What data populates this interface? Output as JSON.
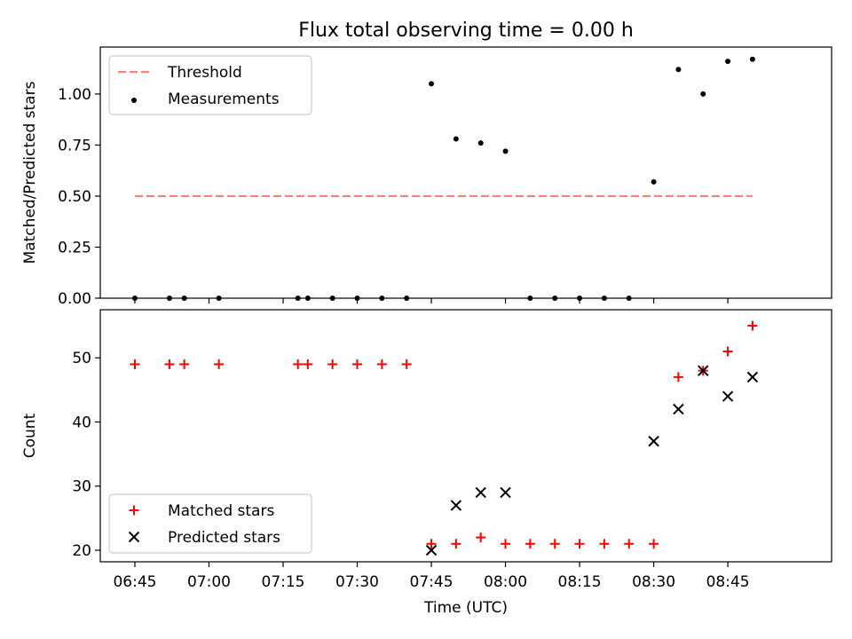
{
  "chart_data": [
    {
      "type": "scatter",
      "title": "Flux total observing time = 0.00 h",
      "xlabel": "",
      "ylabel": "Matched/Predicted stars",
      "ylim": [
        0,
        1.23
      ],
      "yticks": [
        0.0,
        0.25,
        0.5,
        0.75,
        1.0
      ],
      "ytick_labels": [
        "0.00",
        "0.25",
        "0.50",
        "0.75",
        "1.00"
      ],
      "xlim": [
        "06:38",
        "09:06"
      ],
      "xticks": [
        "06:45",
        "07:00",
        "07:15",
        "07:30",
        "07:45",
        "08:00",
        "08:15",
        "08:30",
        "08:45"
      ],
      "legend": "top-left",
      "grid": false,
      "series": [
        {
          "name": "Threshold",
          "kind": "line",
          "style": "dashed",
          "color": "#ff7f7f",
          "x": [
            "06:45",
            "08:50"
          ],
          "y": [
            0.5,
            0.5
          ]
        },
        {
          "name": "Measurements",
          "kind": "scatter",
          "marker": "dot",
          "color": "#000000",
          "x": [
            "06:45",
            "06:52",
            "06:55",
            "07:02",
            "07:18",
            "07:20",
            "07:25",
            "07:30",
            "07:35",
            "07:40",
            "07:45",
            "07:50",
            "07:55",
            "08:00",
            "08:05",
            "08:10",
            "08:15",
            "08:20",
            "08:25",
            "08:30",
            "08:35",
            "08:40",
            "08:45",
            "08:50"
          ],
          "y": [
            0,
            0,
            0,
            0,
            0,
            0,
            0,
            0,
            0,
            0,
            1.05,
            0.78,
            0.76,
            0.72,
            0,
            0,
            0,
            0,
            0,
            0.57,
            1.12,
            1.0,
            1.16,
            1.17
          ]
        }
      ]
    },
    {
      "type": "scatter",
      "title": "",
      "xlabel": "Time (UTC)",
      "ylabel": "Count",
      "ylim": [
        18.2,
        57.5
      ],
      "yticks": [
        20,
        30,
        40,
        50
      ],
      "ytick_labels": [
        "20",
        "30",
        "40",
        "50"
      ],
      "xlim": [
        "06:38",
        "09:06"
      ],
      "xticks": [
        "06:45",
        "07:00",
        "07:15",
        "07:30",
        "07:45",
        "08:00",
        "08:15",
        "08:30",
        "08:45"
      ],
      "xtick_labels": [
        "06:45",
        "07:00",
        "07:15",
        "07:30",
        "07:45",
        "08:00",
        "08:15",
        "08:30",
        "08:45"
      ],
      "legend": "bottom-left",
      "grid": false,
      "series": [
        {
          "name": "Matched stars",
          "kind": "scatter",
          "marker": "plus",
          "color": "#ff0000",
          "x": [
            "06:45",
            "06:52",
            "06:55",
            "07:02",
            "07:18",
            "07:20",
            "07:25",
            "07:30",
            "07:35",
            "07:40",
            "07:45",
            "07:50",
            "07:55",
            "08:00",
            "08:05",
            "08:10",
            "08:15",
            "08:20",
            "08:25",
            "08:30",
            "08:35",
            "08:40",
            "08:45",
            "08:50"
          ],
          "y": [
            49,
            49,
            49,
            49,
            49,
            49,
            49,
            49,
            49,
            49,
            21,
            21,
            22,
            21,
            21,
            21,
            21,
            21,
            21,
            21,
            47,
            48,
            51,
            55
          ]
        },
        {
          "name": "Predicted stars",
          "kind": "scatter",
          "marker": "x",
          "color": "#000000",
          "x": [
            "07:45",
            "07:50",
            "07:55",
            "08:00",
            "08:30",
            "08:35",
            "08:40",
            "08:45",
            "08:50"
          ],
          "y": [
            20,
            27,
            29,
            29,
            37,
            42,
            48,
            44,
            47
          ]
        }
      ]
    }
  ]
}
